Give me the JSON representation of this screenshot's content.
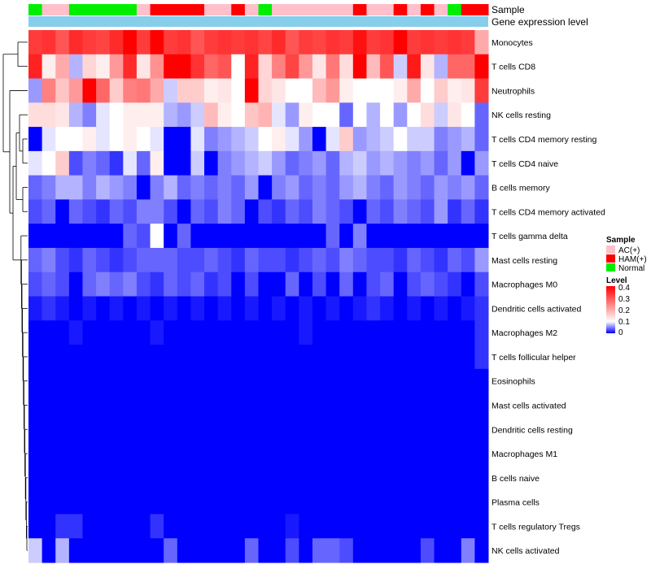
{
  "chart_data": {
    "type": "heatmap",
    "title": "",
    "annotation_tracks": [
      "Sample",
      "Gene expression level"
    ],
    "rows": [
      "Monocytes",
      "T cells CD8",
      "Neutrophils",
      "NK cells resting",
      "T cells CD4 memory resting",
      "T cells CD4 naive",
      "B cells memory",
      "T cells CD4 memory activated",
      "T cells gamma delta",
      "Mast cells resting",
      "Macrophages M0",
      "Dendritic cells activated",
      "Macrophages M2",
      "T cells follicular helper",
      "Eosinophils",
      "Mast cells activated",
      "Dendritic cells resting",
      "Macrophages M1",
      "B cells naive",
      "Plasma cells",
      "T cells regulatory  Tregs",
      "NK cells activated"
    ],
    "sample_groups": [
      "Normal",
      "AC(+)",
      "AC(+)",
      "Normal",
      "Normal",
      "Normal",
      "Normal",
      "Normal",
      "AC(+)",
      "HAM(+)",
      "HAM(+)",
      "HAM(+)",
      "HAM(+)",
      "AC(+)",
      "AC(+)",
      "HAM(+)",
      "AC(+)",
      "Normal",
      "AC(+)",
      "AC(+)",
      "AC(+)",
      "AC(+)",
      "AC(+)",
      "AC(+)",
      "HAM(+)",
      "AC(+)",
      "AC(+)",
      "HAM(+)",
      "AC(+)",
      "HAM(+)",
      "AC(+)",
      "Normal",
      "HAM(+)",
      "HAM(+)"
    ],
    "group_colors": {
      "AC(+)": "#FFC0CB",
      "HAM(+)": "#FF0000",
      "Normal": "#00EE00"
    },
    "expression_level_color": "#87CEEB",
    "values": [
      [
        0.33,
        0.34,
        0.3,
        0.35,
        0.33,
        0.32,
        0.35,
        0.4,
        0.33,
        0.4,
        0.33,
        0.34,
        0.3,
        0.33,
        0.34,
        0.33,
        0.34,
        0.32,
        0.35,
        0.3,
        0.33,
        0.32,
        0.34,
        0.33,
        0.38,
        0.33,
        0.34,
        0.4,
        0.33,
        0.34,
        0.33,
        0.34,
        0.33,
        0.2
      ],
      [
        0.36,
        0.12,
        0.2,
        0.07,
        0.15,
        0.12,
        0.22,
        0.35,
        0.13,
        0.23,
        0.4,
        0.4,
        0.34,
        0.28,
        0.3,
        0.1,
        0.36,
        0.15,
        0.25,
        0.32,
        0.22,
        0.13,
        0.26,
        0.14,
        0.4,
        0.18,
        0.3,
        0.08,
        0.37,
        0.13,
        0.07,
        0.28,
        0.28,
        0.4
      ],
      [
        0.06,
        0.25,
        0.17,
        0.22,
        0.4,
        0.28,
        0.16,
        0.25,
        0.26,
        0.2,
        0.08,
        0.16,
        0.16,
        0.12,
        0.13,
        0.1,
        0.4,
        0.15,
        0.13,
        0.1,
        0.1,
        0.18,
        0.22,
        0.12,
        0.1,
        0.1,
        0.1,
        0.12,
        0.2,
        0.1,
        0.16,
        0.12,
        0.13,
        0.33
      ],
      [
        0.14,
        0.14,
        0.13,
        0.07,
        0.05,
        0.09,
        0.1,
        0.12,
        0.12,
        0.12,
        0.07,
        0.06,
        0.08,
        0.18,
        0.12,
        0.1,
        0.17,
        0.19,
        0.09,
        0.06,
        0.12,
        0.1,
        0.1,
        0.04,
        0.1,
        0.07,
        0.1,
        0.06,
        0.1,
        0.14,
        0.08,
        0.13,
        0.1,
        0.04
      ],
      [
        0.0,
        0.09,
        0.1,
        0.1,
        0.12,
        0.09,
        0.1,
        0.12,
        0.1,
        0.09,
        0.0,
        0.0,
        0.09,
        0.05,
        0.06,
        0.07,
        0.08,
        0.1,
        0.12,
        0.09,
        0.06,
        0.0,
        0.09,
        0.16,
        0.06,
        0.07,
        0.08,
        0.1,
        0.08,
        0.08,
        0.05,
        0.06,
        0.07,
        0.04
      ],
      [
        0.09,
        0.1,
        0.16,
        0.03,
        0.05,
        0.04,
        0.02,
        0.09,
        0.04,
        0.12,
        0.0,
        0.0,
        0.08,
        0.0,
        0.05,
        0.06,
        0.07,
        0.08,
        0.06,
        0.04,
        0.05,
        0.06,
        0.04,
        0.07,
        0.08,
        0.06,
        0.07,
        0.06,
        0.05,
        0.06,
        0.04,
        0.06,
        0.0,
        0.06
      ],
      [
        0.04,
        0.05,
        0.07,
        0.07,
        0.05,
        0.07,
        0.06,
        0.05,
        0.0,
        0.05,
        0.07,
        0.04,
        0.05,
        0.04,
        0.05,
        0.04,
        0.06,
        0.0,
        0.05,
        0.06,
        0.04,
        0.05,
        0.04,
        0.06,
        0.07,
        0.05,
        0.04,
        0.06,
        0.05,
        0.04,
        0.06,
        0.05,
        0.06,
        0.04
      ],
      [
        0.03,
        0.04,
        0.0,
        0.04,
        0.03,
        0.02,
        0.04,
        0.03,
        0.05,
        0.05,
        0.03,
        0.0,
        0.04,
        0.03,
        0.05,
        0.04,
        0.0,
        0.03,
        0.02,
        0.04,
        0.03,
        0.05,
        0.04,
        0.03,
        0.0,
        0.04,
        0.03,
        0.05,
        0.04,
        0.03,
        0.06,
        0.02,
        0.04,
        0.02
      ],
      [
        0.0,
        0.0,
        0.0,
        0.0,
        0.0,
        0.0,
        0.0,
        0.04,
        0.03,
        0.1,
        0.0,
        0.04,
        0.0,
        0.0,
        0.0,
        0.0,
        0.0,
        0.0,
        0.0,
        0.0,
        0.0,
        0.0,
        0.04,
        0.0,
        0.05,
        0.0,
        0.0,
        0.0,
        0.0,
        0.0,
        0.0,
        0.0,
        0.0,
        0.0
      ],
      [
        0.04,
        0.05,
        0.03,
        0.02,
        0.04,
        0.03,
        0.02,
        0.03,
        0.04,
        0.04,
        0.04,
        0.03,
        0.03,
        0.04,
        0.03,
        0.02,
        0.04,
        0.03,
        0.03,
        0.02,
        0.03,
        0.04,
        0.03,
        0.05,
        0.04,
        0.03,
        0.03,
        0.02,
        0.04,
        0.03,
        0.02,
        0.04,
        0.03,
        0.06
      ],
      [
        0.03,
        0.04,
        0.03,
        0.0,
        0.04,
        0.05,
        0.04,
        0.05,
        0.03,
        0.02,
        0.04,
        0.03,
        0.04,
        0.02,
        0.03,
        0.0,
        0.03,
        0.0,
        0.0,
        0.04,
        0.0,
        0.03,
        0.0,
        0.04,
        0.0,
        0.03,
        0.04,
        0.0,
        0.03,
        0.04,
        0.03,
        0.02,
        0.0,
        0.03
      ],
      [
        0.01,
        0.02,
        0.01,
        0.0,
        0.01,
        0.0,
        0.01,
        0.0,
        0.01,
        0.0,
        0.01,
        0.0,
        0.01,
        0.0,
        0.01,
        0.0,
        0.01,
        0.0,
        0.01,
        0.0,
        0.01,
        0.0,
        0.01,
        0.0,
        0.01,
        0.02,
        0.01,
        0.0,
        0.01,
        0.0,
        0.01,
        0.0,
        0.01,
        0.02
      ],
      [
        0.0,
        0.0,
        0.0,
        0.01,
        0.0,
        0.0,
        0.0,
        0.0,
        0.0,
        0.01,
        0.0,
        0.0,
        0.0,
        0.0,
        0.0,
        0.0,
        0.0,
        0.0,
        0.0,
        0.0,
        0.01,
        0.0,
        0.0,
        0.0,
        0.0,
        0.0,
        0.0,
        0.0,
        0.0,
        0.0,
        0.0,
        0.0,
        0.0,
        0.02
      ],
      [
        0.0,
        0.0,
        0.0,
        0.0,
        0.0,
        0.0,
        0.0,
        0.0,
        0.0,
        0.0,
        0.0,
        0.0,
        0.0,
        0.0,
        0.0,
        0.0,
        0.0,
        0.0,
        0.0,
        0.0,
        0.0,
        0.0,
        0.0,
        0.0,
        0.0,
        0.0,
        0.0,
        0.0,
        0.0,
        0.0,
        0.0,
        0.0,
        0.0,
        0.02
      ],
      [
        0.0,
        0.0,
        0.0,
        0.0,
        0.0,
        0.0,
        0.0,
        0.0,
        0.0,
        0.0,
        0.0,
        0.0,
        0.0,
        0.0,
        0.0,
        0.0,
        0.0,
        0.0,
        0.0,
        0.0,
        0.0,
        0.0,
        0.0,
        0.0,
        0.0,
        0.0,
        0.0,
        0.0,
        0.0,
        0.0,
        0.0,
        0.0,
        0.0,
        0.0
      ],
      [
        0.0,
        0.0,
        0.0,
        0.0,
        0.0,
        0.0,
        0.0,
        0.0,
        0.0,
        0.0,
        0.0,
        0.0,
        0.0,
        0.0,
        0.0,
        0.0,
        0.0,
        0.0,
        0.0,
        0.0,
        0.0,
        0.0,
        0.0,
        0.0,
        0.0,
        0.0,
        0.0,
        0.0,
        0.0,
        0.0,
        0.0,
        0.0,
        0.0,
        0.0
      ],
      [
        0.0,
        0.0,
        0.0,
        0.0,
        0.0,
        0.0,
        0.0,
        0.0,
        0.0,
        0.0,
        0.0,
        0.0,
        0.0,
        0.0,
        0.0,
        0.0,
        0.0,
        0.0,
        0.0,
        0.0,
        0.0,
        0.0,
        0.0,
        0.0,
        0.0,
        0.0,
        0.0,
        0.0,
        0.0,
        0.0,
        0.0,
        0.0,
        0.0,
        0.0
      ],
      [
        0.0,
        0.0,
        0.0,
        0.0,
        0.0,
        0.0,
        0.0,
        0.0,
        0.0,
        0.0,
        0.0,
        0.0,
        0.0,
        0.0,
        0.0,
        0.0,
        0.0,
        0.0,
        0.0,
        0.0,
        0.0,
        0.0,
        0.0,
        0.0,
        0.0,
        0.0,
        0.0,
        0.0,
        0.0,
        0.0,
        0.0,
        0.0,
        0.0,
        0.0
      ],
      [
        0.0,
        0.0,
        0.0,
        0.0,
        0.0,
        0.0,
        0.0,
        0.0,
        0.0,
        0.0,
        0.0,
        0.0,
        0.0,
        0.0,
        0.0,
        0.0,
        0.0,
        0.0,
        0.0,
        0.0,
        0.0,
        0.0,
        0.0,
        0.0,
        0.0,
        0.0,
        0.0,
        0.0,
        0.0,
        0.0,
        0.0,
        0.0,
        0.0,
        0.0
      ],
      [
        0.0,
        0.0,
        0.0,
        0.0,
        0.0,
        0.0,
        0.0,
        0.0,
        0.0,
        0.0,
        0.0,
        0.0,
        0.0,
        0.0,
        0.0,
        0.0,
        0.0,
        0.0,
        0.0,
        0.0,
        0.0,
        0.0,
        0.0,
        0.0,
        0.0,
        0.0,
        0.0,
        0.0,
        0.0,
        0.0,
        0.0,
        0.0,
        0.0,
        0.0
      ],
      [
        0.0,
        0.0,
        0.02,
        0.02,
        0.0,
        0.0,
        0.0,
        0.0,
        0.0,
        0.02,
        0.0,
        0.0,
        0.0,
        0.0,
        0.0,
        0.0,
        0.0,
        0.0,
        0.0,
        0.01,
        0.0,
        0.0,
        0.0,
        0.0,
        0.0,
        0.0,
        0.0,
        0.0,
        0.0,
        0.0,
        0.0,
        0.0,
        0.0,
        0.0
      ],
      [
        0.08,
        0.0,
        0.07,
        0.0,
        0.0,
        0.0,
        0.0,
        0.0,
        0.0,
        0.0,
        0.04,
        0.0,
        0.0,
        0.0,
        0.0,
        0.0,
        0.04,
        0.0,
        0.0,
        0.03,
        0.0,
        0.04,
        0.04,
        0.03,
        0.0,
        0.0,
        0.0,
        0.0,
        0.0,
        0.03,
        0.0,
        0.0,
        0.05,
        0.0
      ]
    ],
    "color_scale": {
      "min": 0,
      "mid": 0.1,
      "max": 0.4,
      "low_color": "#0000FF",
      "mid_color": "#FFFFFF",
      "high_color": "#FF0000"
    },
    "legend": {
      "sample_title": "Sample",
      "sample_entries": [
        "AC(+)",
        "HAM(+)",
        "Normal"
      ],
      "level_title": "Level",
      "level_ticks": [
        "0.4",
        "0.3",
        "0.2",
        "0.1",
        "0"
      ],
      "placement": "right"
    }
  }
}
